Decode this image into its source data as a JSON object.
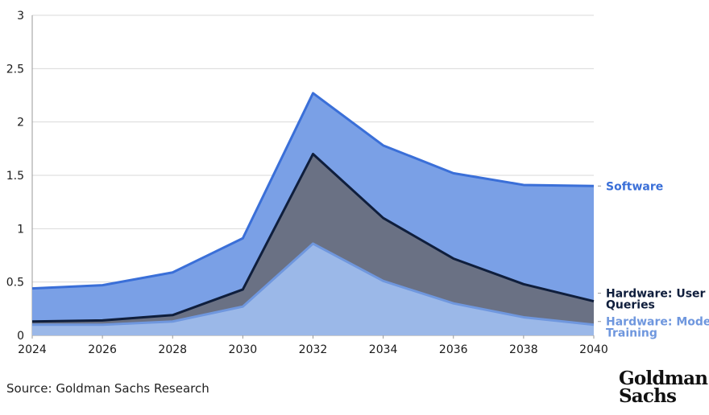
{
  "chart_data": {
    "type": "area",
    "stacked": true,
    "x": [
      2024,
      2026,
      2028,
      2030,
      2032,
      2034,
      2036,
      2038,
      2040
    ],
    "x_ticks": [
      "2024",
      "2026",
      "2028",
      "2030",
      "2032",
      "2034",
      "2036",
      "2038",
      "2040"
    ],
    "y_ticks": [
      "0",
      "0.5",
      "1",
      "1.5",
      "2",
      "2.5",
      "3"
    ],
    "ylim": [
      0,
      3
    ],
    "grid": true,
    "legend": "direct labels at right end of series",
    "series": [
      {
        "name": "Hardware: Model Training",
        "values": [
          0.1,
          0.1,
          0.13,
          0.27,
          0.86,
          0.51,
          0.3,
          0.17,
          0.1
        ],
        "color": "#9bb8e8",
        "line_color": "#6f97de"
      },
      {
        "name": "Hardware: User Queries",
        "values": [
          0.03,
          0.04,
          0.06,
          0.16,
          0.84,
          0.59,
          0.42,
          0.31,
          0.22
        ],
        "color": "#6a7184",
        "line_color": "#0f1e3c"
      },
      {
        "name": "Software",
        "values": [
          0.31,
          0.33,
          0.4,
          0.48,
          0.57,
          0.68,
          0.8,
          0.93,
          1.08
        ],
        "color": "#7aa0e6",
        "line_color": "#3a6fd8"
      }
    ],
    "series_labels": [
      {
        "lines": [
          "Software"
        ],
        "color": "#3a6fd8"
      },
      {
        "lines": [
          "Hardware: User",
          "Queries"
        ],
        "color": "#0f1e3c"
      },
      {
        "lines": [
          "Hardware: Model",
          "Training"
        ],
        "color": "#6f97de"
      }
    ]
  },
  "source": "Source: Goldman Sachs Research",
  "logo": {
    "line1": "Goldman",
    "line2": "Sachs"
  }
}
